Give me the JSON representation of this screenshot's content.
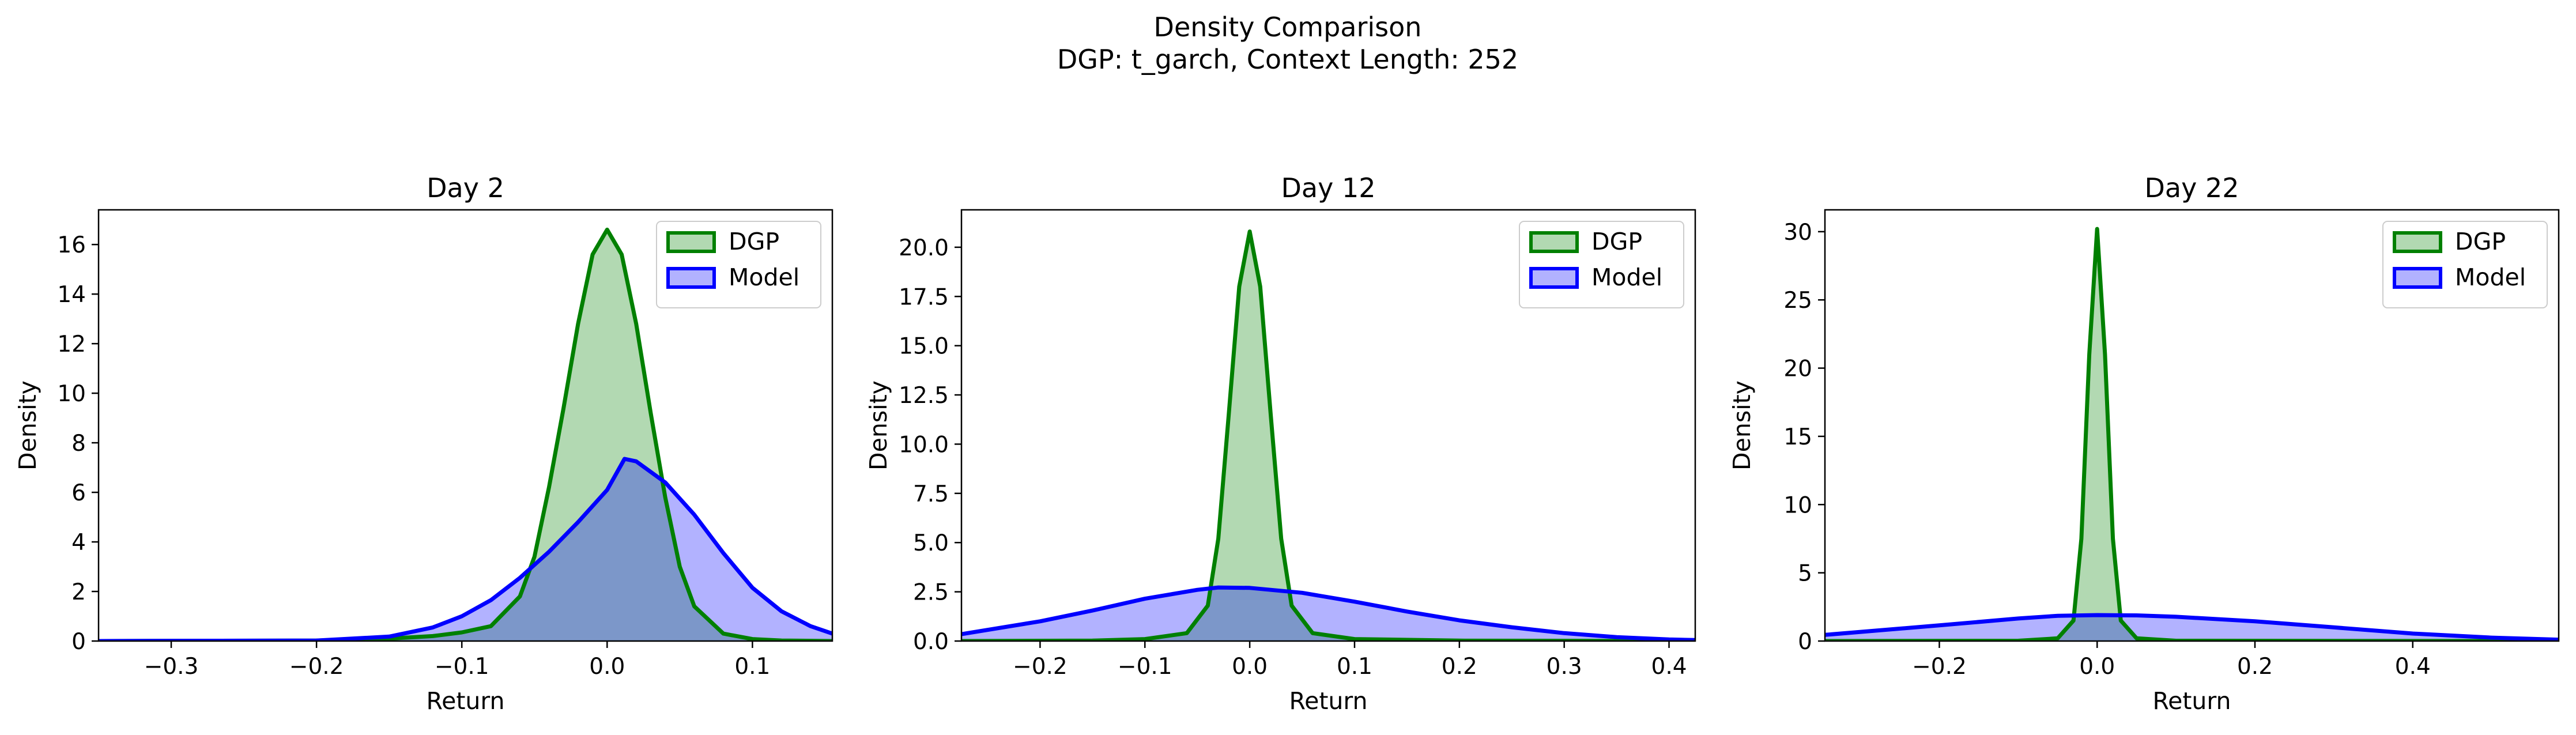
{
  "figure": {
    "suptitle_line1": "Density Comparison",
    "suptitle_line2": "DGP: t_garch, Context Length: 252"
  },
  "colors": {
    "dgp_line": "#008000",
    "dgp_fill": "#008000",
    "model_line": "#0000ff",
    "model_fill": "#0000ff"
  },
  "chart_data": [
    {
      "type": "area",
      "title": "Day 2",
      "xlabel": "Return",
      "ylabel": "Density",
      "xlim": [
        -0.35,
        0.155
      ],
      "ylim": [
        0,
        17.4
      ],
      "xticks": [
        -0.3,
        -0.2,
        -0.1,
        0.0,
        0.1
      ],
      "xtick_labels": [
        "−0.3",
        "−0.2",
        "−0.1",
        "0.0",
        "0.1"
      ],
      "yticks": [
        0,
        2,
        4,
        6,
        8,
        10,
        12,
        14,
        16
      ],
      "ytick_labels": [
        "0",
        "2",
        "4",
        "6",
        "8",
        "10",
        "12",
        "14",
        "16"
      ],
      "legend_position": "upper right",
      "series": [
        {
          "name": "DGP",
          "color": "#008000",
          "x": [
            -0.35,
            -0.2,
            -0.15,
            -0.12,
            -0.1,
            -0.08,
            -0.06,
            -0.05,
            -0.04,
            -0.03,
            -0.02,
            -0.01,
            0.0,
            0.01,
            0.02,
            0.03,
            0.04,
            0.05,
            0.06,
            0.08,
            0.1,
            0.12,
            0.155
          ],
          "y": [
            0.0,
            0.02,
            0.1,
            0.2,
            0.35,
            0.6,
            1.8,
            3.4,
            6.2,
            9.4,
            12.8,
            15.6,
            16.6,
            15.6,
            12.8,
            9.2,
            5.8,
            3.0,
            1.4,
            0.3,
            0.08,
            0.02,
            0.0
          ]
        },
        {
          "name": "Model",
          "color": "#0000ff",
          "x": [
            -0.35,
            -0.2,
            -0.15,
            -0.12,
            -0.1,
            -0.08,
            -0.06,
            -0.04,
            -0.02,
            0.0,
            0.012,
            0.02,
            0.04,
            0.06,
            0.08,
            0.1,
            0.12,
            0.14,
            0.155
          ],
          "y": [
            0.0,
            0.02,
            0.18,
            0.55,
            1.0,
            1.65,
            2.55,
            3.6,
            4.8,
            6.1,
            7.35,
            7.25,
            6.4,
            5.1,
            3.55,
            2.15,
            1.2,
            0.6,
            0.3
          ]
        }
      ]
    },
    {
      "type": "area",
      "title": "Day 12",
      "xlabel": "Return",
      "ylabel": "Density",
      "xlim": [
        -0.275,
        0.425
      ],
      "ylim": [
        0,
        21.9
      ],
      "xticks": [
        -0.2,
        -0.1,
        0.0,
        0.1,
        0.2,
        0.3,
        0.4
      ],
      "xtick_labels": [
        "−0.2",
        "−0.1",
        "0.0",
        "0.1",
        "0.2",
        "0.3",
        "0.4"
      ],
      "yticks": [
        0,
        2.5,
        5,
        7.5,
        10,
        12.5,
        15,
        17.5,
        20
      ],
      "ytick_labels": [
        "0.0",
        "2.5",
        "5.0",
        "7.5",
        "10.0",
        "12.5",
        "15.0",
        "17.5",
        "20.0"
      ],
      "legend_position": "upper right",
      "series": [
        {
          "name": "DGP",
          "color": "#008000",
          "x": [
            -0.275,
            -0.15,
            -0.1,
            -0.06,
            -0.04,
            -0.03,
            -0.02,
            -0.01,
            0.0,
            0.01,
            0.02,
            0.03,
            0.04,
            0.06,
            0.1,
            0.2,
            0.425
          ],
          "y": [
            0.0,
            0.02,
            0.1,
            0.4,
            1.8,
            5.2,
            11.5,
            18.0,
            20.8,
            18.0,
            11.5,
            5.2,
            1.8,
            0.4,
            0.1,
            0.02,
            0.0
          ]
        },
        {
          "name": "Model",
          "color": "#0000ff",
          "x": [
            -0.275,
            -0.2,
            -0.15,
            -0.1,
            -0.05,
            -0.03,
            0.0,
            0.05,
            0.1,
            0.15,
            0.2,
            0.25,
            0.3,
            0.35,
            0.4,
            0.425
          ],
          "y": [
            0.35,
            1.0,
            1.55,
            2.15,
            2.6,
            2.72,
            2.7,
            2.45,
            2.0,
            1.5,
            1.05,
            0.7,
            0.4,
            0.2,
            0.08,
            0.05
          ]
        }
      ]
    },
    {
      "type": "area",
      "title": "Day 22",
      "xlabel": "Return",
      "ylabel": "Density",
      "xlim": [
        -0.345,
        0.585
      ],
      "ylim": [
        0,
        31.6
      ],
      "xticks": [
        -0.2,
        0.0,
        0.2,
        0.4
      ],
      "xtick_labels": [
        "−0.2",
        "0.0",
        "0.2",
        "0.4"
      ],
      "yticks": [
        0,
        5,
        10,
        15,
        20,
        25,
        30
      ],
      "ytick_labels": [
        "0",
        "5",
        "10",
        "15",
        "20",
        "25",
        "30"
      ],
      "legend_position": "upper right",
      "series": [
        {
          "name": "DGP",
          "color": "#008000",
          "x": [
            -0.345,
            -0.1,
            -0.05,
            -0.03,
            -0.02,
            -0.01,
            0.0,
            0.01,
            0.02,
            0.03,
            0.05,
            0.1,
            0.585
          ],
          "y": [
            0.0,
            0.02,
            0.2,
            1.5,
            7.5,
            21.0,
            30.2,
            21.0,
            7.5,
            1.5,
            0.2,
            0.02,
            0.0
          ]
        },
        {
          "name": "Model",
          "color": "#0000ff",
          "x": [
            -0.345,
            -0.2,
            -0.1,
            -0.05,
            0.0,
            0.05,
            0.1,
            0.2,
            0.3,
            0.4,
            0.5,
            0.585
          ],
          "y": [
            0.45,
            1.15,
            1.65,
            1.85,
            1.9,
            1.88,
            1.78,
            1.45,
            1.0,
            0.55,
            0.25,
            0.1
          ]
        }
      ]
    }
  ]
}
